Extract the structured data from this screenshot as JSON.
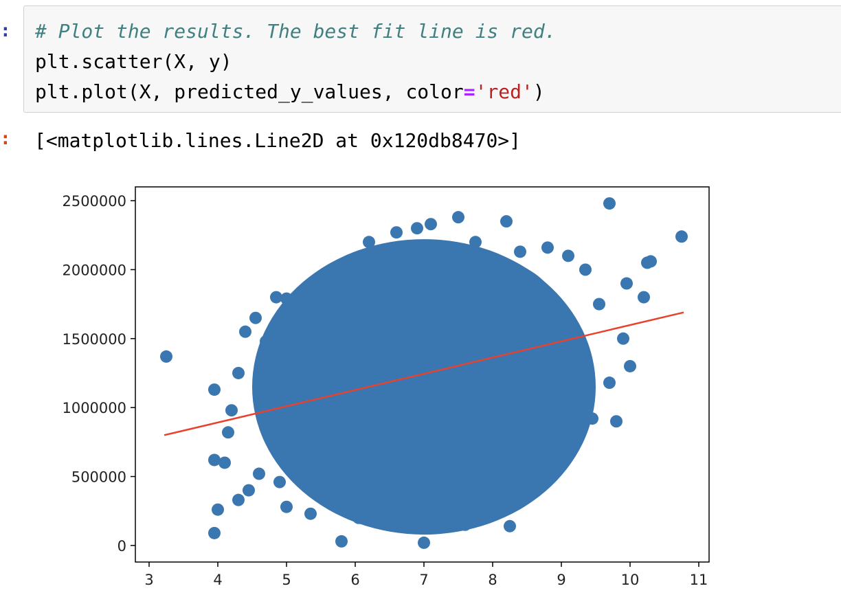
{
  "cell": {
    "prompt_in": ":",
    "prompt_out": ":",
    "code": {
      "comment": "# Plot the results. The best fit line is red.",
      "line2": "plt.scatter(X, y)",
      "line3_prefix": "plt.plot(X, predicted_y_values, color",
      "line3_op": "=",
      "line3_str": "'red'",
      "line3_suffix": ")"
    },
    "output": "[<matplotlib.lines.Line2D at 0x120db8470>]"
  },
  "colors": {
    "scatter": "#3a76af",
    "fit_line": "#e8412c",
    "prompt_in": "#303F9F",
    "prompt_out": "#D84315"
  },
  "chart_data": {
    "type": "scatter",
    "xlim": [
      2.8,
      11.15
    ],
    "ylim": [
      -120000,
      2600000
    ],
    "xticks": [
      3,
      4,
      5,
      6,
      7,
      8,
      9,
      10,
      11
    ],
    "yticks": [
      0,
      500000,
      1000000,
      1500000,
      2000000,
      2500000
    ],
    "x_tick_labels": [
      "3",
      "4",
      "5",
      "6",
      "7",
      "8",
      "9",
      "10",
      "11"
    ],
    "y_tick_labels": [
      "0",
      "500000",
      "1000000",
      "1500000",
      "2000000",
      "2500000"
    ],
    "series": [
      {
        "type": "scatter",
        "points": [
          [
            3.25,
            1370000
          ],
          [
            3.95,
            620000
          ],
          [
            3.95,
            1130000
          ],
          [
            3.95,
            90000
          ],
          [
            4.0,
            260000
          ],
          [
            4.1,
            600000
          ],
          [
            4.15,
            820000
          ],
          [
            4.2,
            980000
          ],
          [
            4.3,
            1250000
          ],
          [
            4.3,
            330000
          ],
          [
            4.4,
            1550000
          ],
          [
            4.45,
            400000
          ],
          [
            4.55,
            1650000
          ],
          [
            4.6,
            520000
          ],
          [
            4.7,
            1480000
          ],
          [
            4.8,
            1050000
          ],
          [
            4.85,
            1800000
          ],
          [
            4.9,
            460000
          ],
          [
            5.0,
            1790000
          ],
          [
            5.0,
            280000
          ],
          [
            5.1,
            700000
          ],
          [
            5.2,
            1400000
          ],
          [
            5.3,
            1750000
          ],
          [
            5.35,
            230000
          ],
          [
            5.5,
            1900000
          ],
          [
            5.6,
            400000
          ],
          [
            5.75,
            2000000
          ],
          [
            5.8,
            30000
          ],
          [
            5.9,
            1950000
          ],
          [
            6.05,
            200000
          ],
          [
            6.2,
            2200000
          ],
          [
            6.4,
            340000
          ],
          [
            6.6,
            2270000
          ],
          [
            6.8,
            300000
          ],
          [
            6.9,
            2300000
          ],
          [
            7.0,
            20000
          ],
          [
            7.1,
            2330000
          ],
          [
            7.3,
            420000
          ],
          [
            7.5,
            2380000
          ],
          [
            7.6,
            150000
          ],
          [
            7.75,
            2200000
          ],
          [
            8.0,
            500000
          ],
          [
            8.2,
            2350000
          ],
          [
            8.25,
            140000
          ],
          [
            8.4,
            2130000
          ],
          [
            8.6,
            620000
          ],
          [
            8.8,
            2160000
          ],
          [
            8.95,
            600000
          ],
          [
            9.1,
            2100000
          ],
          [
            9.2,
            950000
          ],
          [
            9.35,
            2000000
          ],
          [
            9.45,
            920000
          ],
          [
            9.55,
            1750000
          ],
          [
            9.7,
            2480000
          ],
          [
            9.7,
            1180000
          ],
          [
            9.8,
            900000
          ],
          [
            9.9,
            1500000
          ],
          [
            9.95,
            1900000
          ],
          [
            10.0,
            1300000
          ],
          [
            10.2,
            1800000
          ],
          [
            10.25,
            2050000
          ],
          [
            10.3,
            2060000
          ],
          [
            10.75,
            2240000
          ]
        ]
      },
      {
        "type": "line",
        "name": "best fit",
        "x": [
          3.22,
          10.78
        ],
        "y": [
          800000,
          1690000
        ]
      }
    ]
  }
}
